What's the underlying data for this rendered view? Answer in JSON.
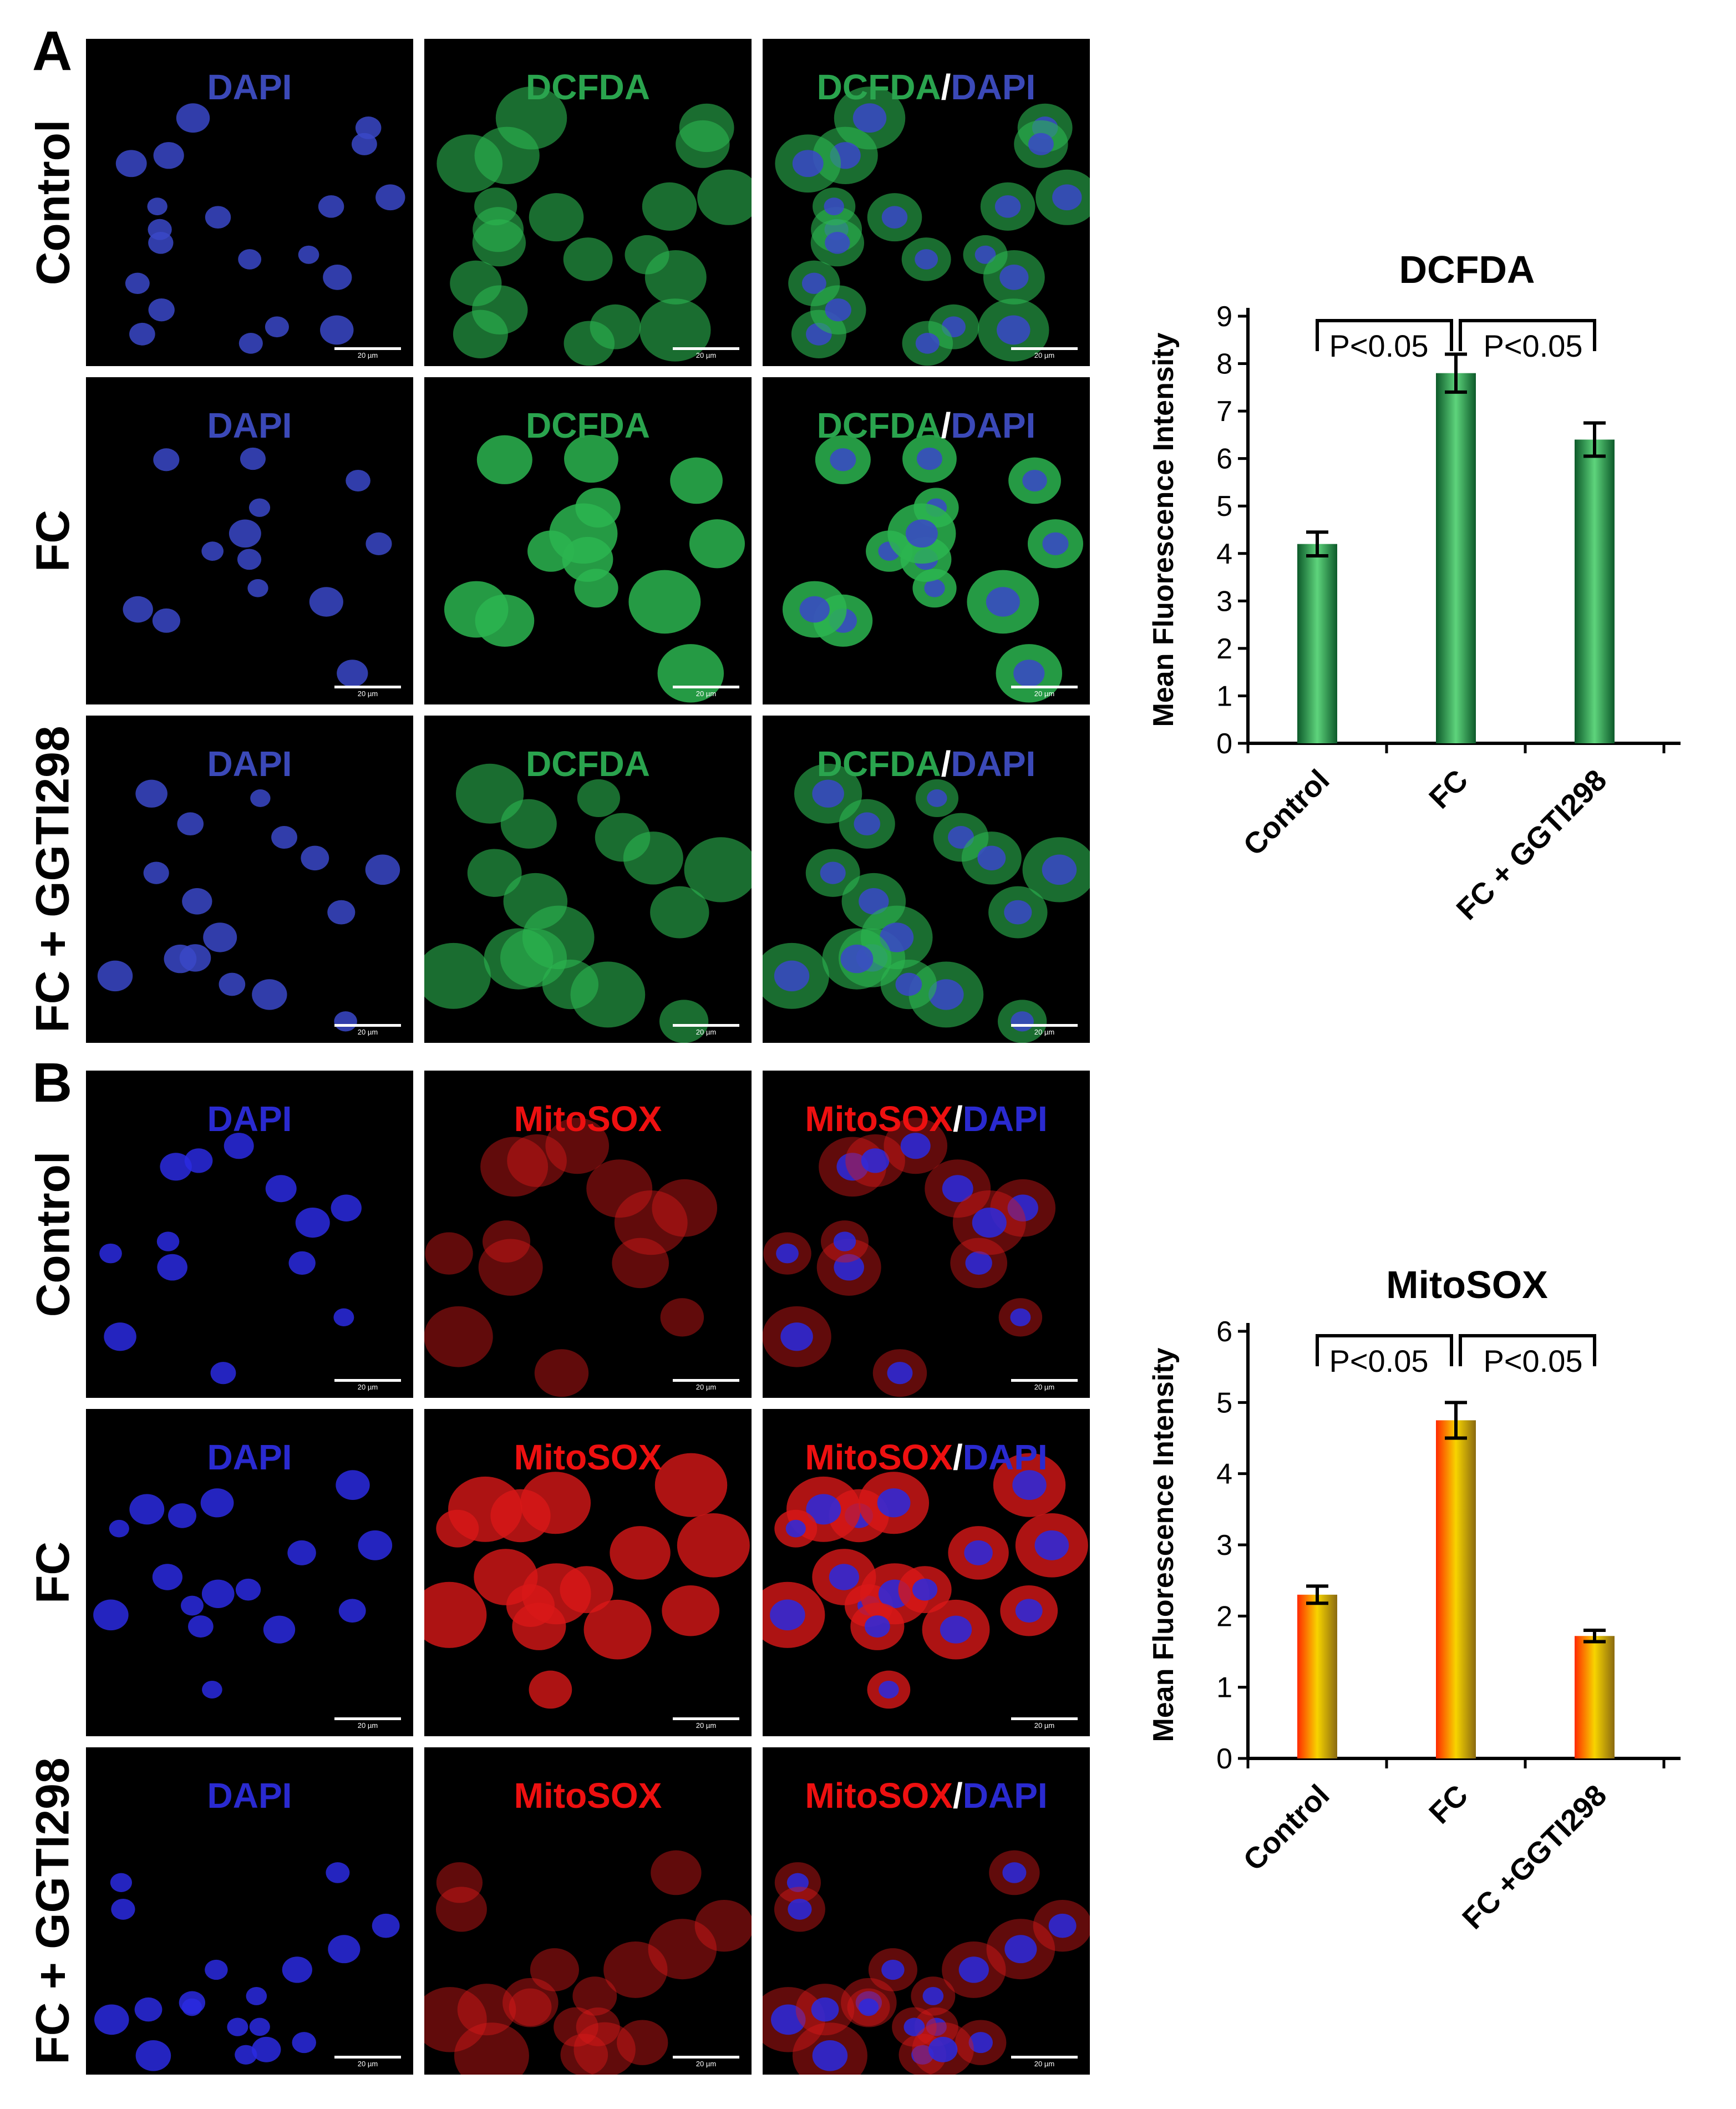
{
  "panels": [
    {
      "letter": "A",
      "rows": [
        {
          "label": "Control"
        },
        {
          "label": "FC"
        },
        {
          "label": "FC + GGTI298"
        }
      ],
      "channels": [
        {
          "parts": [
            {
              "text": "DAPI",
              "color": "#3b49b8"
            }
          ]
        },
        {
          "parts": [
            {
              "text": "DCFDA",
              "color": "#2aa44e"
            }
          ]
        },
        {
          "parts": [
            {
              "text": "DCFDA",
              "color": "#2aa44e"
            },
            {
              "text": "/",
              "color": "#ffffff"
            },
            {
              "text": "DAPI",
              "color": "#3b49b8"
            }
          ]
        }
      ],
      "scale_text": "20 µm"
    },
    {
      "letter": "B",
      "rows": [
        {
          "label": "Control"
        },
        {
          "label": "FC"
        },
        {
          "label": "FC + GGTI298"
        }
      ],
      "channels": [
        {
          "parts": [
            {
              "text": "DAPI",
              "color": "#2a2ad0"
            }
          ]
        },
        {
          "parts": [
            {
              "text": "MitoSOX",
              "color": "#ee1010"
            }
          ]
        },
        {
          "parts": [
            {
              "text": "MitoSOX",
              "color": "#ee1010"
            },
            {
              "text": "/",
              "color": "#ffffff"
            },
            {
              "text": "DAPI",
              "color": "#2a2ad0"
            }
          ]
        }
      ],
      "scale_text": "20 µm"
    }
  ],
  "chart_data": [
    {
      "type": "bar",
      "title": "DCFDA",
      "ylabel": "Mean Fluorescence Intensity",
      "categories": [
        "Control",
        "FC",
        "FC + GGTI298"
      ],
      "values": [
        4.2,
        7.8,
        6.4
      ],
      "errors": [
        0.25,
        0.4,
        0.35
      ],
      "ylim": [
        0,
        9
      ],
      "yticks": [
        "0",
        "1",
        "2",
        "3",
        "4",
        "5",
        "6",
        "7",
        "8",
        "9"
      ],
      "significance": [
        "P<0.05",
        "P<0.05"
      ],
      "bar_colors": [
        "#0d5a2a",
        "#5ed47c",
        "#0d5a2a"
      ]
    },
    {
      "type": "bar",
      "title": "MitoSOX",
      "ylabel": "Mean Fluorescence Intensity",
      "categories": [
        "Control",
        "FC",
        "FC +GGTI298"
      ],
      "values": [
        2.3,
        4.75,
        1.72
      ],
      "errors": [
        0.12,
        0.25,
        0.08
      ],
      "ylim": [
        0,
        6
      ],
      "yticks": [
        "0",
        "1",
        "2",
        "3",
        "4",
        "5",
        "6"
      ],
      "significance": [
        "P<0.05",
        "P<0.05"
      ],
      "bar_colors": [
        "#ff2a00",
        "#f7d400",
        "#8a6a10"
      ]
    }
  ]
}
